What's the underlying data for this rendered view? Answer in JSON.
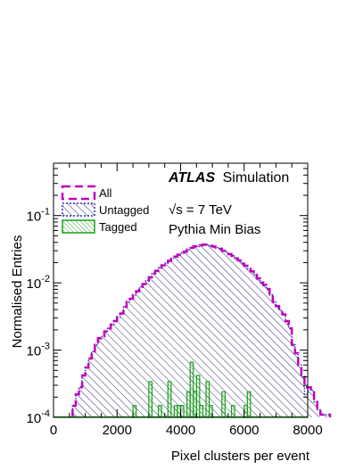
{
  "chart_data": {
    "type": "histogram",
    "xlabel": "Pixel clusters per event",
    "ylabel": "Normalised Entries",
    "xlim": [
      0,
      8000
    ],
    "ylim": [
      0.0001,
      0.6
    ],
    "yscale": "log",
    "x_ticks": [
      "0",
      "2000",
      "4000",
      "6000",
      "8000"
    ],
    "y_ticks": [
      {
        "base": "10",
        "exp": "-1",
        "value": 0.1
      },
      {
        "base": "10",
        "exp": "-2",
        "value": 0.01
      },
      {
        "base": "10",
        "exp": "-3",
        "value": 0.001
      },
      {
        "base": "10",
        "exp": "-4",
        "value": 0.0001
      }
    ],
    "annotations": {
      "atlas": "ATLAS",
      "atlas_rest": "Simulation",
      "energy_sqrt": "√",
      "energy_rest": "s = 7 TeV",
      "generator": "Pythia Min Bias"
    },
    "bin_width": 100,
    "series": [
      {
        "name": "All",
        "color": "#c000c0",
        "style": "dashed",
        "x_start": 600,
        "values": [
          0.00015,
          0.00022,
          0.00028,
          0.00042,
          0.00055,
          0.00075,
          0.00095,
          0.0012,
          0.0015,
          0.0016,
          0.0019,
          0.0021,
          0.0024,
          0.0027,
          0.0031,
          0.0035,
          0.0044,
          0.0052,
          0.0058,
          0.0066,
          0.0075,
          0.0087,
          0.0096,
          0.0108,
          0.0121,
          0.0138,
          0.0151,
          0.0168,
          0.0182,
          0.0195,
          0.0212,
          0.0233,
          0.0245,
          0.0262,
          0.028,
          0.0291,
          0.0313,
          0.0332,
          0.0348,
          0.0345,
          0.0362,
          0.037,
          0.0368,
          0.0355,
          0.0346,
          0.0334,
          0.0322,
          0.0299,
          0.0284,
          0.0268,
          0.0252,
          0.0231,
          0.0215,
          0.0193,
          0.0179,
          0.0162,
          0.0148,
          0.0131,
          0.0116,
          0.0101,
          0.0093,
          0.0081,
          0.0066,
          0.0052,
          0.0045,
          0.0039,
          0.0034,
          0.0027,
          0.0021,
          0.0012,
          0.0009,
          0.0006,
          0.0004,
          0.00028,
          0.00028,
          0.00025,
          0.00017,
          0.00013,
          0.00011,
          0.00011,
          0.00011
        ]
      },
      {
        "name": "Untagged",
        "color": "#2a2ab8",
        "style": "dotted",
        "x_start": 600,
        "values": [
          0.00015,
          0.00022,
          0.00028,
          0.00042,
          0.00055,
          0.00075,
          0.00095,
          0.0012,
          0.0015,
          0.0016,
          0.0019,
          0.0021,
          0.0024,
          0.0027,
          0.0031,
          0.0035,
          0.0044,
          0.0052,
          0.0058,
          0.0066,
          0.0075,
          0.0087,
          0.0096,
          0.0108,
          0.0121,
          0.0138,
          0.0151,
          0.0168,
          0.0182,
          0.0195,
          0.0212,
          0.0233,
          0.0245,
          0.0262,
          0.028,
          0.0291,
          0.0313,
          0.0332,
          0.0348,
          0.0345,
          0.0362,
          0.037,
          0.0368,
          0.0355,
          0.0346,
          0.0334,
          0.0322,
          0.0299,
          0.0284,
          0.0268,
          0.0252,
          0.0231,
          0.0215,
          0.0193,
          0.0179,
          0.0162,
          0.0148,
          0.0131,
          0.0116,
          0.0101,
          0.0093,
          0.0081,
          0.0066,
          0.0052,
          0.0045,
          0.0039,
          0.0034,
          0.0027,
          0.0021,
          0.0012,
          0.0009,
          0.0006,
          0.0004,
          0.00022,
          0.00028,
          0.00025,
          0.00017,
          0.00013,
          0.00011,
          0.00011,
          0.00011
        ]
      },
      {
        "name": "Tagged",
        "color": "#1aa01a",
        "style": "solid",
        "bars": [
          {
            "x": 2500,
            "y": 0.00015
          },
          {
            "x": 3000,
            "y": 0.00034
          },
          {
            "x": 3300,
            "y": 0.00015
          },
          {
            "x": 3600,
            "y": 0.00034
          },
          {
            "x": 3800,
            "y": 0.00015
          },
          {
            "x": 3900,
            "y": 0.00015
          },
          {
            "x": 4000,
            "y": 0.00015
          },
          {
            "x": 4200,
            "y": 0.00024
          },
          {
            "x": 4300,
            "y": 0.00066
          },
          {
            "x": 4400,
            "y": 0.00024
          },
          {
            "x": 4500,
            "y": 0.00042
          },
          {
            "x": 4600,
            "y": 0.00015
          },
          {
            "x": 4800,
            "y": 0.00034
          },
          {
            "x": 4900,
            "y": 0.00015
          },
          {
            "x": 5300,
            "y": 0.00024
          },
          {
            "x": 5600,
            "y": 0.00015
          },
          {
            "x": 6000,
            "y": 0.00015
          },
          {
            "x": 6100,
            "y": 0.00024
          }
        ]
      }
    ]
  }
}
